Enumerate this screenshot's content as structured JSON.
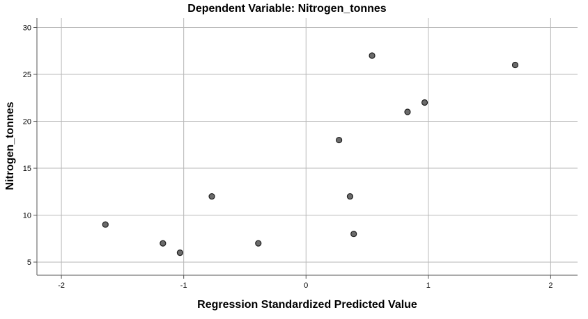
{
  "chart_data": {
    "type": "scatter",
    "title": "Dependent Variable: Nitrogen_tonnes",
    "xlabel": "Regression Standardized Predicted Value",
    "ylabel": "Nitrogen_tonnes",
    "xlim": [
      -2.2,
      2.22
    ],
    "ylim": [
      3.6,
      31
    ],
    "xticks": [
      -2,
      -1,
      0,
      1,
      2
    ],
    "yticks": [
      5,
      10,
      15,
      20,
      25,
      30
    ],
    "grid": true,
    "colors": {
      "marker_fill": "#6b6b6b",
      "marker_edge": "#1e1e1e",
      "grid": "#b8b8b8"
    },
    "series": [
      {
        "points": [
          {
            "x": -1.64,
            "y": 9
          },
          {
            "x": -1.17,
            "y": 7
          },
          {
            "x": -1.03,
            "y": 6
          },
          {
            "x": -0.77,
            "y": 12
          },
          {
            "x": -0.39,
            "y": 7
          },
          {
            "x": 0.27,
            "y": 18
          },
          {
            "x": 0.36,
            "y": 12
          },
          {
            "x": 0.39,
            "y": 8
          },
          {
            "x": 0.54,
            "y": 27
          },
          {
            "x": 0.83,
            "y": 21
          },
          {
            "x": 0.97,
            "y": 22
          },
          {
            "x": 1.71,
            "y": 26
          }
        ]
      }
    ]
  }
}
